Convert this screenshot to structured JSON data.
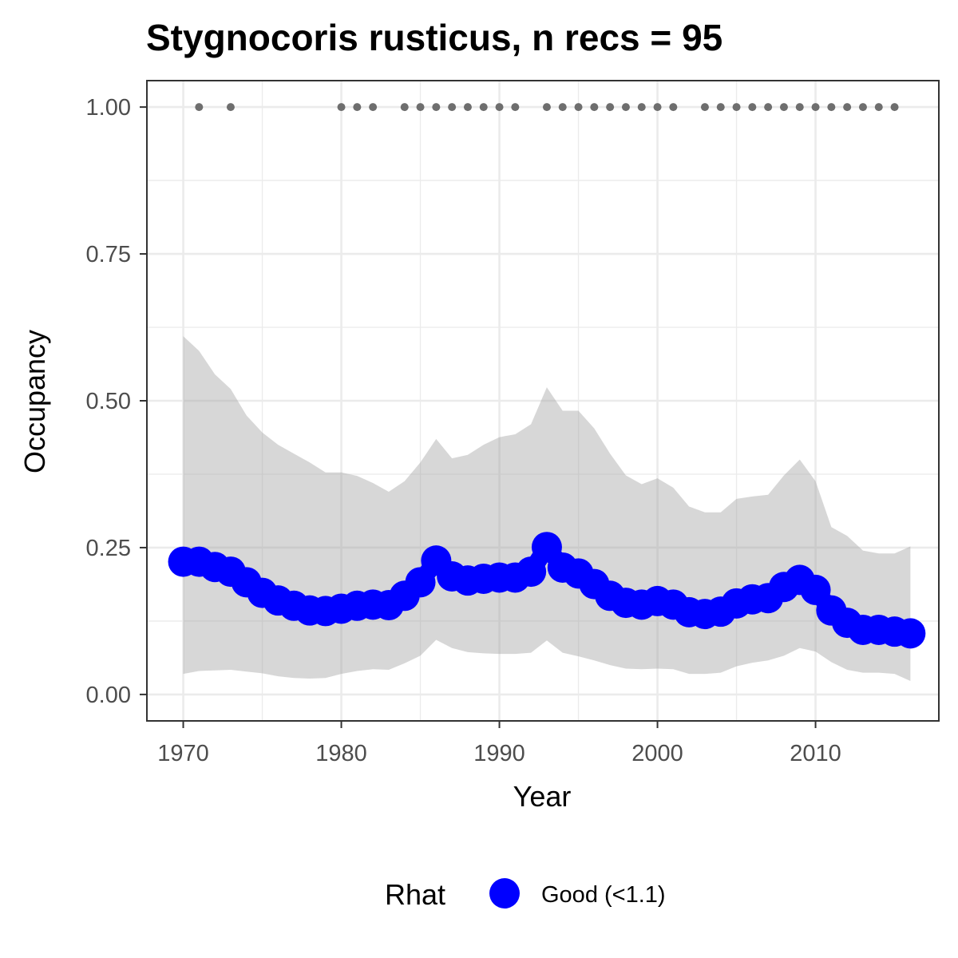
{
  "chart_data": {
    "type": "line",
    "title": "Stygnocoris rusticus, n recs = 95",
    "xlabel": "Year",
    "ylabel": "Occupancy",
    "xlim": [
      1967.7,
      2017.8
    ],
    "ylim": [
      -0.045,
      1.045
    ],
    "x_ticks": [
      1970,
      1980,
      1990,
      2000,
      2010
    ],
    "y_ticks": [
      0.0,
      0.25,
      0.5,
      0.75,
      1.0
    ],
    "x_tick_labels": [
      "1970",
      "1980",
      "1990",
      "2000",
      "2010"
    ],
    "y_tick_labels": [
      "0.00",
      "0.25",
      "0.50",
      "0.75",
      "1.00"
    ],
    "grid": true,
    "years": [
      1970,
      1971,
      1972,
      1973,
      1974,
      1975,
      1976,
      1977,
      1978,
      1979,
      1980,
      1981,
      1982,
      1983,
      1984,
      1985,
      1986,
      1987,
      1988,
      1989,
      1990,
      1991,
      1992,
      1993,
      1994,
      1995,
      1996,
      1997,
      1998,
      1999,
      2000,
      2001,
      2002,
      2003,
      2004,
      2005,
      2006,
      2007,
      2008,
      2009,
      2010,
      2011,
      2012,
      2013,
      2014,
      2015,
      2016
    ],
    "series": [
      {
        "name": "Good (<1.1)",
        "mean": [
          0.226,
          0.226,
          0.217,
          0.209,
          0.191,
          0.173,
          0.16,
          0.151,
          0.143,
          0.142,
          0.146,
          0.151,
          0.153,
          0.152,
          0.168,
          0.191,
          0.228,
          0.201,
          0.194,
          0.197,
          0.199,
          0.199,
          0.209,
          0.251,
          0.216,
          0.206,
          0.188,
          0.168,
          0.156,
          0.153,
          0.159,
          0.153,
          0.14,
          0.137,
          0.141,
          0.155,
          0.162,
          0.164,
          0.183,
          0.195,
          0.178,
          0.143,
          0.122,
          0.11,
          0.11,
          0.107,
          0.104
        ],
        "lower": [
          0.035,
          0.04,
          0.041,
          0.042,
          0.039,
          0.036,
          0.031,
          0.028,
          0.027,
          0.028,
          0.035,
          0.04,
          0.043,
          0.042,
          0.053,
          0.066,
          0.093,
          0.079,
          0.072,
          0.07,
          0.069,
          0.069,
          0.071,
          0.092,
          0.071,
          0.065,
          0.058,
          0.05,
          0.044,
          0.043,
          0.044,
          0.043,
          0.035,
          0.035,
          0.037,
          0.048,
          0.054,
          0.058,
          0.066,
          0.079,
          0.073,
          0.055,
          0.042,
          0.037,
          0.037,
          0.035,
          0.023
        ]
      }
    ],
    "upper": [
      0.61,
      0.585,
      0.545,
      0.52,
      0.475,
      0.446,
      0.425,
      0.41,
      0.395,
      0.378,
      0.378,
      0.372,
      0.36,
      0.345,
      0.363,
      0.395,
      0.435,
      0.402,
      0.408,
      0.425,
      0.438,
      0.443,
      0.46,
      0.523,
      0.483,
      0.483,
      0.453,
      0.41,
      0.373,
      0.358,
      0.368,
      0.352,
      0.32,
      0.31,
      0.31,
      0.333,
      0.337,
      0.34,
      0.373,
      0.4,
      0.363,
      0.285,
      0.27,
      0.245,
      0.24,
      0.24,
      0.252
    ],
    "records_years": [
      1971,
      1973,
      1980,
      1981,
      1982,
      1984,
      1985,
      1986,
      1987,
      1988,
      1989,
      1990,
      1991,
      1993,
      1994,
      1995,
      1996,
      1997,
      1998,
      1999,
      2000,
      2001,
      2003,
      2004,
      2005,
      2006,
      2007,
      2008,
      2009,
      2010,
      2011,
      2012,
      2013,
      2014,
      2015
    ],
    "records_value": 1.0,
    "legend": {
      "title": "Rhat",
      "position": "bottom",
      "entries": [
        "Good (<1.1)"
      ]
    },
    "colors": {
      "line": "#0000ff",
      "ribbon": "#999999",
      "records": "#6e6e6e",
      "grid": "#ebebeb",
      "panel_border": "#333333",
      "tick_text": "#4d4d4d"
    }
  }
}
